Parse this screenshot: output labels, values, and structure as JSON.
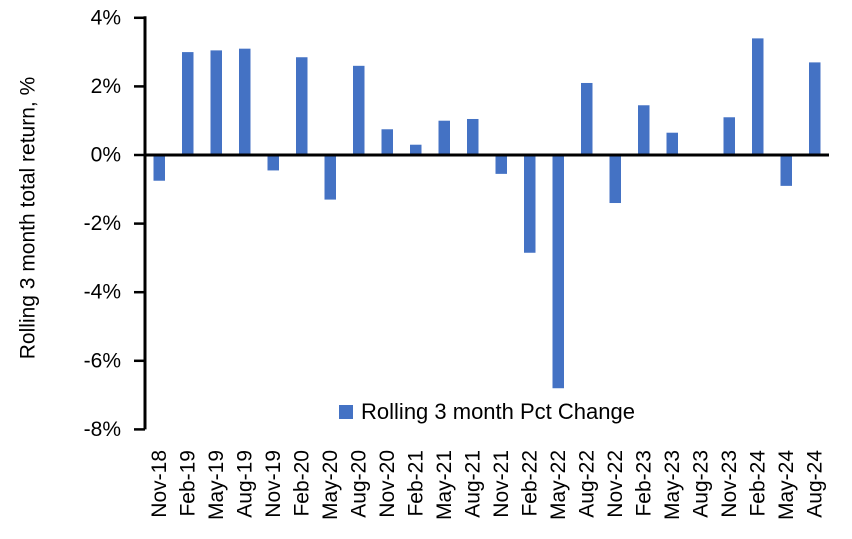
{
  "chart_data": {
    "type": "bar",
    "title": "",
    "xlabel": "",
    "ylabel": "Rolling 3 month total return, %",
    "legend_label": "Rolling 3 month Pct Change",
    "legend_position": "bottom-center-inside",
    "grid": false,
    "ylim": [
      -8,
      4
    ],
    "yticks": [
      4,
      2,
      0,
      -2,
      -4,
      -6,
      -8
    ],
    "ytick_labels": [
      "4%",
      "2%",
      "0%",
      "-2%",
      "-4%",
      "-6%",
      "-8%"
    ],
    "categories": [
      "Nov-18",
      "Feb-19",
      "May-19",
      "Aug-19",
      "Nov-19",
      "Feb-20",
      "May-20",
      "Aug-20",
      "Nov-20",
      "Feb-21",
      "May-21",
      "Aug-21",
      "Nov-21",
      "Feb-22",
      "May-22",
      "Aug-22",
      "Nov-22",
      "Feb-23",
      "May-23",
      "Aug-23",
      "Nov-23",
      "Feb-24",
      "May-24",
      "Aug-24"
    ],
    "series": [
      {
        "name": "Rolling 3 month Pct Change",
        "values": [
          -0.75,
          3.0,
          3.05,
          3.1,
          -0.45,
          2.85,
          -1.3,
          2.6,
          0.75,
          0.3,
          1.0,
          1.05,
          -0.55,
          -2.85,
          -6.8,
          2.1,
          -1.4,
          1.45,
          0.65,
          0,
          1.1,
          3.4,
          -0.9,
          2.7
        ]
      }
    ],
    "bar_color": "#4472C4",
    "axis_color": "#000000"
  }
}
